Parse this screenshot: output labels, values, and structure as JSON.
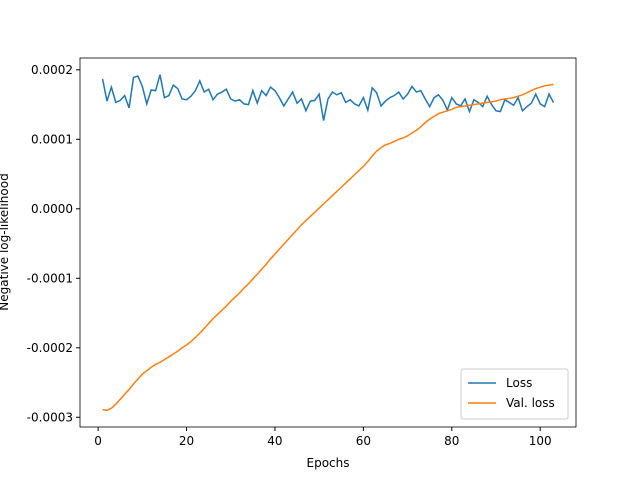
{
  "chart_data": {
    "type": "line",
    "xlabel": "Epochs",
    "ylabel": "Negative log-likelihood",
    "x": [
      1,
      2,
      3,
      4,
      5,
      6,
      7,
      8,
      9,
      10,
      11,
      12,
      13,
      14,
      15,
      16,
      17,
      18,
      19,
      20,
      21,
      22,
      23,
      24,
      25,
      26,
      27,
      28,
      29,
      30,
      31,
      32,
      33,
      34,
      35,
      36,
      37,
      38,
      39,
      40,
      41,
      42,
      43,
      44,
      45,
      46,
      47,
      48,
      49,
      50,
      51,
      52,
      53,
      54,
      55,
      56,
      57,
      58,
      59,
      60,
      61,
      62,
      63,
      64,
      65,
      66,
      67,
      68,
      69,
      70,
      71,
      72,
      73,
      74,
      75,
      76,
      77,
      78,
      79,
      80,
      81,
      82,
      83,
      84,
      85,
      86,
      87,
      88,
      89,
      90,
      91,
      92,
      93,
      94,
      95,
      96,
      97,
      98,
      99,
      100,
      101,
      102,
      103
    ],
    "series": [
      {
        "name": "Loss",
        "color": "#1f77b4",
        "values": [
          0.000187,
          0.000155,
          0.000175,
          0.000153,
          0.000156,
          0.000163,
          0.000145,
          0.000189,
          0.000191,
          0.000176,
          0.000151,
          0.000171,
          0.00017,
          0.000193,
          0.00016,
          0.000163,
          0.000178,
          0.000173,
          0.000158,
          0.000157,
          0.000162,
          0.00017,
          0.000184,
          0.000168,
          0.000172,
          0.000157,
          0.000165,
          0.000168,
          0.000172,
          0.000158,
          0.000155,
          0.000157,
          0.000151,
          0.00015,
          0.00017,
          0.000152,
          0.00017,
          0.000163,
          0.000175,
          0.00017,
          0.00016,
          0.000148,
          0.000158,
          0.000168,
          0.000152,
          0.000158,
          0.000141,
          0.000155,
          0.000156,
          0.000165,
          0.000127,
          0.000158,
          0.000168,
          0.000164,
          0.000167,
          0.000153,
          0.000157,
          0.000151,
          0.000148,
          0.00016,
          0.000142,
          0.000174,
          0.000167,
          0.000148,
          0.000155,
          0.00016,
          0.000163,
          0.000168,
          0.000158,
          0.000165,
          0.000176,
          0.000168,
          0.00017,
          0.000158,
          0.000147,
          0.00016,
          0.000164,
          0.000156,
          0.000142,
          0.00016,
          0.000151,
          0.000148,
          0.000158,
          0.00014,
          0.000157,
          0.000153,
          0.000147,
          0.000162,
          0.00015,
          0.000141,
          0.00014,
          0.000157,
          0.000153,
          0.000149,
          0.00016,
          0.000141,
          0.000147,
          0.000152,
          0.000165,
          0.000151,
          0.000147,
          0.000165,
          0.000153
        ]
      },
      {
        "name": "Val. loss",
        "color": "#ff7f0e",
        "values": [
          -0.000289,
          -0.00029,
          -0.000287,
          -0.000281,
          -0.000274,
          -0.000267,
          -0.00026,
          -0.000252,
          -0.000245,
          -0.000238,
          -0.000233,
          -0.000228,
          -0.000224,
          -0.000221,
          -0.000217,
          -0.000213,
          -0.000209,
          -0.000205,
          -0.0002,
          -0.000196,
          -0.000191,
          -0.000185,
          -0.000179,
          -0.000172,
          -0.000165,
          -0.000158,
          -0.000152,
          -0.000146,
          -0.00014,
          -0.000133,
          -0.000127,
          -0.000121,
          -0.000114,
          -0.000108,
          -0.000101,
          -9.4e-05,
          -8.7e-05,
          -8e-05,
          -7.2e-05,
          -6.5e-05,
          -5.8e-05,
          -5.1e-05,
          -4.4e-05,
          -3.7e-05,
          -3e-05,
          -2.3e-05,
          -1.7e-05,
          -1.1e-05,
          -5e-06,
          1e-06,
          7e-06,
          1.3e-05,
          1.9e-05,
          2.5e-05,
          3.1e-05,
          3.7e-05,
          4.3e-05,
          4.9e-05,
          5.5e-05,
          6.1e-05,
          6.8e-05,
          7.6e-05,
          8.3e-05,
          8.8e-05,
          9.2e-05,
          9.4e-05,
          9.7e-05,
          0.0001,
          0.000102,
          0.000105,
          0.000109,
          0.000113,
          0.000118,
          0.000124,
          0.000129,
          0.000133,
          0.000137,
          0.000139,
          0.000141,
          0.000143,
          0.000146,
          0.000147,
          0.000148,
          0.000149,
          0.00015,
          0.000151,
          0.000152,
          0.000153,
          0.000154,
          0.000155,
          0.000157,
          0.000158,
          0.000159,
          0.00016,
          0.000162,
          0.000164,
          0.000167,
          0.00017,
          0.000173,
          0.000175,
          0.000177,
          0.000178,
          0.000179
        ]
      }
    ],
    "xlim": [
      -4.1,
      108.1
    ],
    "xticks": [
      0,
      20,
      40,
      60,
      80,
      100
    ],
    "ylim": [
      -0.000314,
      0.000217
    ],
    "yticks": [
      {
        "value": -0.0003,
        "label": "-0.0003"
      },
      {
        "value": -0.0002,
        "label": "-0.0002"
      },
      {
        "value": -0.0001,
        "label": "-0.0001"
      },
      {
        "value": 0,
        "label": "0.0000"
      },
      {
        "value": 0.0001,
        "label": "0.0001"
      },
      {
        "value": 0.0002,
        "label": "0.0002"
      }
    ],
    "legend": "lower right",
    "grid": false
  }
}
